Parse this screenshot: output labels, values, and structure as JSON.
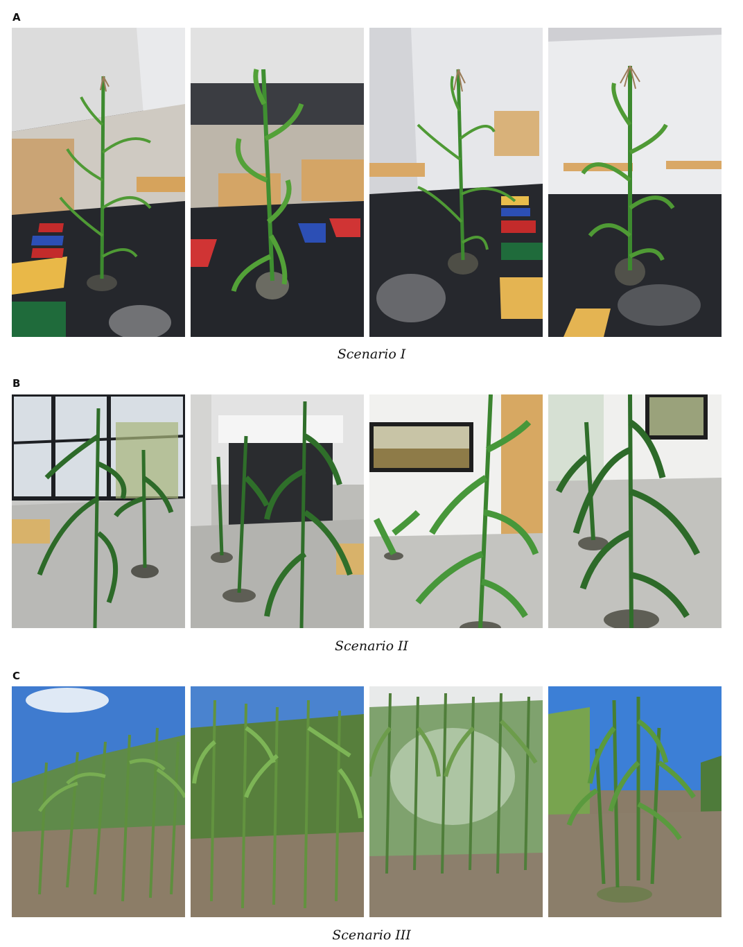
{
  "panels": [
    {
      "letter": "A",
      "caption": "Scenario I"
    },
    {
      "letter": "B",
      "caption": "Scenario II"
    },
    {
      "letter": "C",
      "caption": "Scenario III"
    }
  ]
}
